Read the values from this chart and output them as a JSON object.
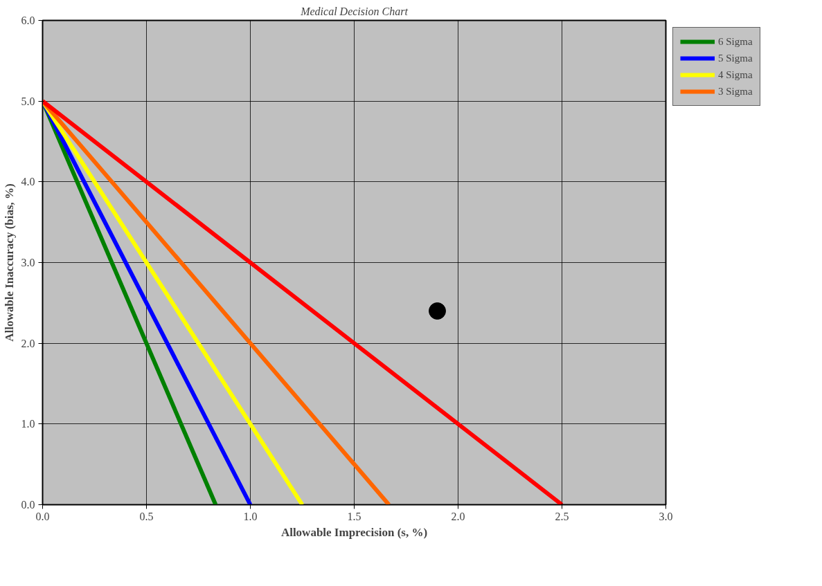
{
  "chart_data": {
    "type": "line",
    "title": "Medical Decision Chart",
    "xlabel": "Allowable Imprecision (s, %)",
    "ylabel": "Allowable Inaccuracy (bias, %)",
    "xlim": [
      0,
      3
    ],
    "ylim": [
      0,
      6
    ],
    "xticks": [
      {
        "value": 0,
        "label": "0.0"
      },
      {
        "value": 0.5,
        "label": "0.5"
      },
      {
        "value": 1,
        "label": "1.0"
      },
      {
        "value": 1.5,
        "label": "1.5"
      },
      {
        "value": 2,
        "label": "2.0"
      },
      {
        "value": 2.5,
        "label": "2.5"
      },
      {
        "value": 3,
        "label": "3.0"
      }
    ],
    "yticks": [
      {
        "value": 0,
        "label": "0.0"
      },
      {
        "value": 1,
        "label": "1.0"
      },
      {
        "value": 2,
        "label": "2.0"
      },
      {
        "value": 3,
        "label": "3.0"
      },
      {
        "value": 4,
        "label": "4.0"
      },
      {
        "value": 5,
        "label": "5.0"
      },
      {
        "value": 6,
        "label": "6.0"
      }
    ],
    "grid": true,
    "legend": "top right",
    "marker": "none",
    "line_style": "solid",
    "series": [
      {
        "name": "6 Sigma",
        "color": "#008000",
        "x": [
          0,
          0.833
        ],
        "values": [
          5,
          0
        ]
      },
      {
        "name": "5 Sigma",
        "color": "#0000ff",
        "x": [
          0,
          1.0
        ],
        "values": [
          5,
          0
        ]
      },
      {
        "name": "4 Sigma",
        "color": "#ffff00",
        "x": [
          0,
          1.25
        ],
        "values": [
          5,
          0
        ]
      },
      {
        "name": "3 Sigma",
        "color": "#ff6600",
        "x": [
          0,
          1.667
        ],
        "values": [
          5,
          0
        ]
      },
      {
        "color": "#ff0000",
        "x": [
          0,
          2.5
        ],
        "values": [
          5,
          0
        ]
      },
      {
        "type": "scatter",
        "marker": "circle",
        "color": "#000000",
        "x": [
          1.9
        ],
        "values": [
          2.4
        ]
      }
    ]
  }
}
